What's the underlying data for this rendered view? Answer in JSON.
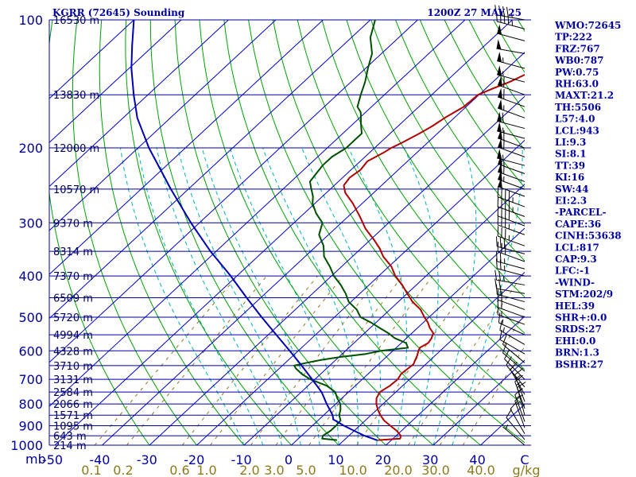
{
  "chart_data": {
    "type": "line",
    "title": "KGRR (72645) Sounding",
    "valid_time": "1200Z 27 MAY 25",
    "pressure_axis_unit": "mb",
    "pressure_ticks": [
      "100",
      "200",
      "300",
      "400",
      "500",
      "600",
      "700",
      "800",
      "900",
      "1000"
    ],
    "temperature_ticks": [
      "-50",
      "-40",
      "-30",
      "-20",
      "-10",
      "0",
      "10",
      "20",
      "30",
      "40",
      "C"
    ],
    "mixing_ratio_ticks": [
      "0.1",
      "0.2",
      "0.6",
      "1.0",
      "2.0",
      "3.0",
      "5.0",
      "10.0",
      "20.0",
      "30.0",
      "40.0",
      "g/kg"
    ],
    "height_labels": [
      {
        "p": 100,
        "label": "16530 m"
      },
      {
        "p": 150,
        "label": "13830 m"
      },
      {
        "p": 200,
        "label": "12000 m"
      },
      {
        "p": 250,
        "label": "10570 m"
      },
      {
        "p": 300,
        "label": "9370 m"
      },
      {
        "p": 350,
        "label": "8314 m"
      },
      {
        "p": 400,
        "label": "7370 m"
      },
      {
        "p": 450,
        "label": "6509 m"
      },
      {
        "p": 500,
        "label": "5720 m"
      },
      {
        "p": 550,
        "label": "4994 m"
      },
      {
        "p": 600,
        "label": "4328 m"
      },
      {
        "p": 650,
        "label": "3710 m"
      },
      {
        "p": 700,
        "label": "3131 m"
      },
      {
        "p": 750,
        "label": "2584 m"
      },
      {
        "p": 800,
        "label": "2066 m"
      },
      {
        "p": 850,
        "label": "1571 m"
      },
      {
        "p": 900,
        "label": "1095 m"
      },
      {
        "p": 950,
        "label": "643 m"
      },
      {
        "p": 1000,
        "label": "214 m"
      }
    ],
    "series": [
      {
        "key": "temperature",
        "color": "#b00000",
        "points": [
          [
            973,
            17.2
          ],
          [
            965,
            21.5
          ],
          [
            950,
            21.0
          ],
          [
            925,
            19.0
          ],
          [
            900,
            16.5
          ],
          [
            875,
            14.0
          ],
          [
            850,
            12.0
          ],
          [
            825,
            10.2
          ],
          [
            800,
            8.6
          ],
          [
            775,
            7.3
          ],
          [
            750,
            6.6
          ],
          [
            725,
            7.3
          ],
          [
            700,
            7.5
          ],
          [
            680,
            7.0
          ],
          [
            660,
            7.2
          ],
          [
            645,
            7.4
          ],
          [
            630,
            6.8
          ],
          [
            615,
            6.2
          ],
          [
            600,
            5.4
          ],
          [
            590,
            5.0
          ],
          [
            575,
            5.7
          ],
          [
            560,
            5.3
          ],
          [
            545,
            4.5
          ],
          [
            530,
            2.6
          ],
          [
            515,
            1.0
          ],
          [
            500,
            -1.0
          ],
          [
            480,
            -3.5
          ],
          [
            460,
            -7.0
          ],
          [
            440,
            -10.0
          ],
          [
            420,
            -13.0
          ],
          [
            400,
            -16.5
          ],
          [
            380,
            -19.5
          ],
          [
            360,
            -23.5
          ],
          [
            345,
            -26.0
          ],
          [
            330,
            -29.0
          ],
          [
            310,
            -33.5
          ],
          [
            290,
            -37.5
          ],
          [
            270,
            -42.0
          ],
          [
            255,
            -46.0
          ],
          [
            245,
            -48.0
          ],
          [
            235,
            -48.5
          ],
          [
            225,
            -48.0
          ],
          [
            215,
            -48.5
          ],
          [
            205,
            -47.0
          ],
          [
            200,
            -46.5
          ],
          [
            195,
            -45.5
          ],
          [
            185,
            -43.8
          ],
          [
            178,
            -42.8
          ],
          [
            170,
            -42.0
          ],
          [
            160,
            -40.5
          ],
          [
            150,
            -40.2
          ],
          [
            145,
            -38.5
          ],
          [
            140,
            -36.5
          ],
          [
            130,
            -33.5
          ],
          [
            120,
            -30.0
          ],
          [
            110,
            -26.5
          ],
          [
            100,
            -23.0
          ]
        ]
      },
      {
        "key": "dewpoint",
        "color": "#005000",
        "points": [
          [
            973,
            8.5
          ],
          [
            965,
            5.0
          ],
          [
            950,
            4.5
          ],
          [
            925,
            5.0
          ],
          [
            900,
            5.0
          ],
          [
            875,
            4.8
          ],
          [
            850,
            3.3
          ],
          [
            825,
            2.3
          ],
          [
            800,
            1.0
          ],
          [
            775,
            -1.0
          ],
          [
            750,
            -2.8
          ],
          [
            725,
            -6.0
          ],
          [
            700,
            -11.0
          ],
          [
            680,
            -14.0
          ],
          [
            660,
            -16.5
          ],
          [
            650,
            -17.5
          ],
          [
            640,
            -15.5
          ],
          [
            630,
            -13.0
          ],
          [
            620,
            -9.5
          ],
          [
            610,
            -5.0
          ],
          [
            600,
            -2.5
          ],
          [
            590,
            2.5
          ],
          [
            575,
            1.0
          ],
          [
            560,
            -2.5
          ],
          [
            545,
            -5.0
          ],
          [
            530,
            -8.0
          ],
          [
            515,
            -11.0
          ],
          [
            500,
            -14.5
          ],
          [
            480,
            -17.0
          ],
          [
            460,
            -20.5
          ],
          [
            440,
            -23.0
          ],
          [
            420,
            -26.0
          ],
          [
            400,
            -29.5
          ],
          [
            380,
            -32.5
          ],
          [
            360,
            -36.0
          ],
          [
            340,
            -38.5
          ],
          [
            320,
            -42.0
          ],
          [
            300,
            -44.0
          ],
          [
            285,
            -47.5
          ],
          [
            270,
            -50.5
          ],
          [
            260,
            -52.0
          ],
          [
            250,
            -54.0
          ],
          [
            240,
            -56.0
          ],
          [
            230,
            -56.5
          ],
          [
            220,
            -57.0
          ],
          [
            210,
            -57.0
          ],
          [
            200,
            -56.0
          ],
          [
            195,
            -56.0
          ],
          [
            185,
            -56.0
          ],
          [
            175,
            -58.5
          ],
          [
            165,
            -61.0
          ],
          [
            160,
            -63.0
          ],
          [
            150,
            -65.0
          ],
          [
            140,
            -67.0
          ],
          [
            130,
            -69.5
          ],
          [
            120,
            -72.0
          ],
          [
            110,
            -76.0
          ],
          [
            100,
            -79.0
          ]
        ]
      },
      {
        "key": "parcel",
        "color": "#0000b0",
        "points": [
          [
            975,
            17.2
          ],
          [
            950,
            13.3
          ],
          [
            925,
            10.0
          ],
          [
            900,
            6.7
          ],
          [
            870,
            3.0
          ],
          [
            850,
            1.9
          ],
          [
            800,
            -1.9
          ],
          [
            750,
            -5.7
          ],
          [
            700,
            -10.6
          ],
          [
            650,
            -15.9
          ],
          [
            600,
            -21.8
          ],
          [
            550,
            -28.3
          ],
          [
            500,
            -35.4
          ],
          [
            450,
            -43.0
          ],
          [
            400,
            -51.3
          ],
          [
            350,
            -61.2
          ],
          [
            300,
            -71.8
          ],
          [
            250,
            -83.7
          ],
          [
            200,
            -97.7
          ],
          [
            170,
            -107.0
          ],
          [
            150,
            -113.0
          ],
          [
            130,
            -119.5
          ],
          [
            115,
            -124.5
          ],
          [
            100,
            -130.0
          ]
        ]
      }
    ]
  },
  "indices": [
    "WMO:72645",
    "TP:222",
    "FRZ:767",
    "WB0:787",
    "PW:0.75",
    "RH:63.0",
    "MAXT:21.2",
    "TH:5506",
    "L57:4.0",
    "LCL:943",
    "LI:9.3",
    "SI:8.1",
    "TT:39",
    "KI:16",
    "SW:44",
    "EI:2.3",
    "-PARCEL-",
    "CAPE:36",
    "CINH:53638",
    "LCL:817",
    "CAP:9.3",
    "LFC:-1",
    "-WIND-",
    "STM:202/9",
    "HEL:39",
    "SHR+:0.0",
    "SRDS:27",
    "EHI:0.0",
    "BRN:1.3",
    "BSHR:27"
  ],
  "wind_barbs": [
    {
      "p": 100,
      "dir": 280,
      "spd": 45
    },
    {
      "p": 105,
      "dir": 285,
      "spd": 45
    },
    {
      "p": 112,
      "dir": 285,
      "spd": 50
    },
    {
      "p": 120,
      "dir": 280,
      "spd": 50
    },
    {
      "p": 130,
      "dir": 285,
      "spd": 55
    },
    {
      "p": 140,
      "dir": 285,
      "spd": 55
    },
    {
      "p": 150,
      "dir": 290,
      "spd": 60
    },
    {
      "p": 160,
      "dir": 290,
      "spd": 60
    },
    {
      "p": 170,
      "dir": 290,
      "spd": 55
    },
    {
      "p": 180,
      "dir": 285,
      "spd": 60
    },
    {
      "p": 190,
      "dir": 285,
      "spd": 55
    },
    {
      "p": 200,
      "dir": 290,
      "spd": 60
    },
    {
      "p": 210,
      "dir": 290,
      "spd": 60
    },
    {
      "p": 220,
      "dir": 285,
      "spd": 55
    },
    {
      "p": 230,
      "dir": 290,
      "spd": 55
    },
    {
      "p": 240,
      "dir": 290,
      "spd": 60
    },
    {
      "p": 250,
      "dir": 290,
      "spd": 55
    },
    {
      "p": 260,
      "dir": 290,
      "spd": 50
    },
    {
      "p": 275,
      "dir": 290,
      "spd": 45
    },
    {
      "p": 290,
      "dir": 290,
      "spd": 45
    },
    {
      "p": 305,
      "dir": 290,
      "spd": 40
    },
    {
      "p": 320,
      "dir": 290,
      "spd": 35
    },
    {
      "p": 340,
      "dir": 290,
      "spd": 35
    },
    {
      "p": 355,
      "dir": 285,
      "spd": 30
    },
    {
      "p": 370,
      "dir": 290,
      "spd": 30
    },
    {
      "p": 385,
      "dir": 285,
      "spd": 25
    },
    {
      "p": 400,
      "dir": 285,
      "spd": 25
    },
    {
      "p": 420,
      "dir": 280,
      "spd": 25
    },
    {
      "p": 440,
      "dir": 280,
      "spd": 20
    },
    {
      "p": 460,
      "dir": 285,
      "spd": 20
    },
    {
      "p": 480,
      "dir": 290,
      "spd": 20
    },
    {
      "p": 500,
      "dir": 290,
      "spd": 20
    },
    {
      "p": 520,
      "dir": 290,
      "spd": 15
    },
    {
      "p": 550,
      "dir": 295,
      "spd": 15
    },
    {
      "p": 580,
      "dir": 300,
      "spd": 15
    },
    {
      "p": 610,
      "dir": 300,
      "spd": 10
    },
    {
      "p": 640,
      "dir": 310,
      "spd": 10
    },
    {
      "p": 670,
      "dir": 310,
      "spd": 10
    },
    {
      "p": 700,
      "dir": 315,
      "spd": 10
    },
    {
      "p": 730,
      "dir": 320,
      "spd": 10
    },
    {
      "p": 760,
      "dir": 330,
      "spd": 10
    },
    {
      "p": 790,
      "dir": 340,
      "spd": 15
    },
    {
      "p": 820,
      "dir": 340,
      "spd": 15
    },
    {
      "p": 850,
      "dir": 345,
      "spd": 15
    },
    {
      "p": 880,
      "dir": 340,
      "spd": 15
    },
    {
      "p": 910,
      "dir": 340,
      "spd": 15
    },
    {
      "p": 940,
      "dir": 330,
      "spd": 10
    },
    {
      "p": 970,
      "dir": 320,
      "spd": 10
    },
    {
      "p": 1000,
      "dir": 310,
      "spd": 5
    }
  ],
  "colors": {
    "isobar": "#0000a0",
    "isotherm": "#0000c8",
    "dry_adiabat": "#00a000",
    "moist_adiabat": "#00b4b4",
    "mixing_ratio": "#8c7a1c",
    "temperature": "#b00000",
    "dewpoint": "#005000",
    "parcel": "#0000b0",
    "wind_barb": "#000000"
  }
}
